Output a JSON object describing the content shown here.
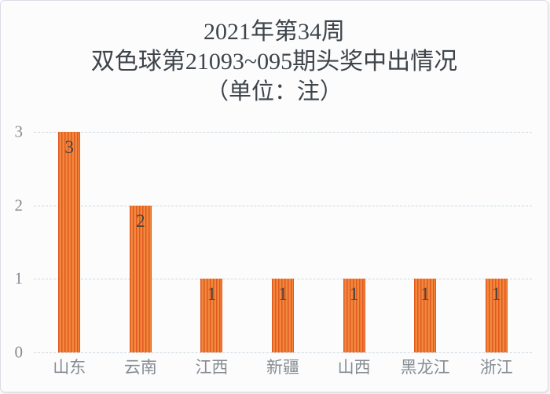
{
  "title": {
    "line1": "2021年第34周",
    "line2": "双色球第21093~095期头奖中出情况",
    "line3": "（单位：注）"
  },
  "chart_data": {
    "type": "bar",
    "title": "2021年第34周 双色球第21093~095期头奖中出情况（单位：注）",
    "categories": [
      "山东",
      "云南",
      "江西",
      "新疆",
      "山西",
      "黑龙江",
      "浙江"
    ],
    "values": [
      3,
      2,
      1,
      1,
      1,
      1,
      1
    ],
    "data_labels": [
      "3",
      "2",
      "1",
      "1",
      "1",
      "1",
      "1"
    ],
    "xlabel": "",
    "ylabel": "",
    "ylim": [
      0,
      3
    ],
    "yticks": [
      0,
      1,
      2,
      3
    ],
    "grid": true,
    "gridline_style": "dashed",
    "legend": false
  },
  "colors": {
    "bar_light": "#f0883e",
    "bar_dark": "#e2581f",
    "gridline": "#ccd8e2",
    "axis_text": "#868c92",
    "value_label_text": "#49443e",
    "title_text": "#3e444a",
    "card_background": "#fcfcfc",
    "card_border": "#dcdce8"
  }
}
